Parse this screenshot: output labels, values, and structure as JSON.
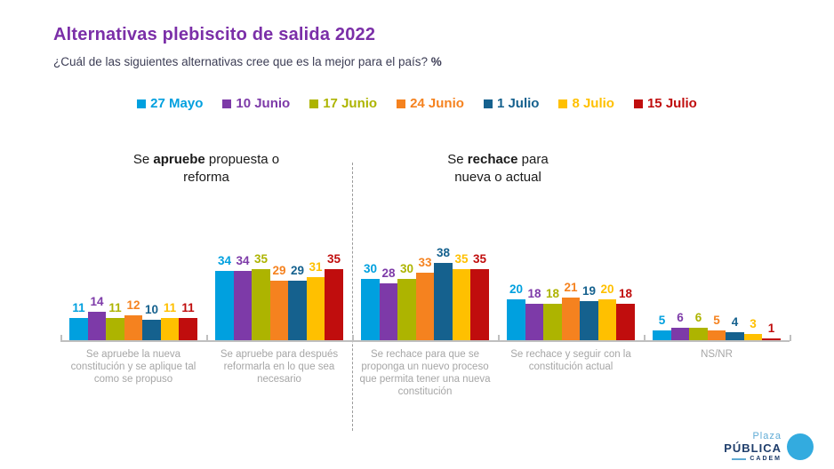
{
  "title": "Alternativas plebiscito de salida 2022",
  "subtitle": {
    "text": "¿Cuál de las siguientes alternativas cree que es la mejor para el país? ",
    "suffix": "%"
  },
  "colors": {
    "title": "#7B2FA8",
    "subtitle": "#3C3D55",
    "axis": "#BFBFBF",
    "category_label": "#A6A6A6",
    "divider": "#9A9A9A",
    "header_text": "#1A1A1A"
  },
  "group_headers": [
    {
      "pre": "Se ",
      "bold": "apruebe",
      "post": " propuesta o reforma"
    },
    {
      "pre": "Se ",
      "bold": "rechace",
      "post": " para nueva o actual"
    }
  ],
  "chart_data": {
    "type": "bar",
    "title": "Alternativas plebiscito de salida 2022",
    "unit": "%",
    "grid": false,
    "legend_position": "top",
    "value_labels": true,
    "ylim": [
      0,
      40
    ],
    "categories": [
      "Se apruebe la nueva constitución y se aplique tal como se propuso",
      "Se apruebe para después reformarla en lo que sea necesario",
      "Se rechace para que se proponga un nuevo proceso que permita tener una nueva constitución",
      "Se rechace y seguir con la constitución actual",
      "NS/NR"
    ],
    "series": [
      {
        "name": "27 Mayo",
        "color": "#00A0DF",
        "values": [
          11,
          34,
          30,
          20,
          5
        ]
      },
      {
        "name": "10 Junio",
        "color": "#7D3AA8",
        "values": [
          14,
          34,
          28,
          18,
          6
        ]
      },
      {
        "name": "17 Junio",
        "color": "#ADB400",
        "values": [
          11,
          35,
          30,
          18,
          6
        ]
      },
      {
        "name": "24 Junio",
        "color": "#F5821F",
        "values": [
          12,
          29,
          33,
          21,
          5
        ]
      },
      {
        "name": "1 Julio",
        "color": "#15618E",
        "values": [
          10,
          29,
          38,
          19,
          4
        ]
      },
      {
        "name": "8 Julio",
        "color": "#FFC000",
        "values": [
          11,
          31,
          35,
          20,
          3
        ]
      },
      {
        "name": "15 Julio",
        "color": "#C00D0D",
        "values": [
          11,
          35,
          35,
          18,
          1
        ]
      }
    ]
  },
  "logo": {
    "line1": "Plaza",
    "line2": "PÚBLICA",
    "line3": "CADEM",
    "light_blue": "#5FABD5",
    "navy": "#1E3D6B",
    "icon_blue": "#33ABDF",
    "icon_purple": "#472B63",
    "icon_teal": "#1B6B8C"
  }
}
